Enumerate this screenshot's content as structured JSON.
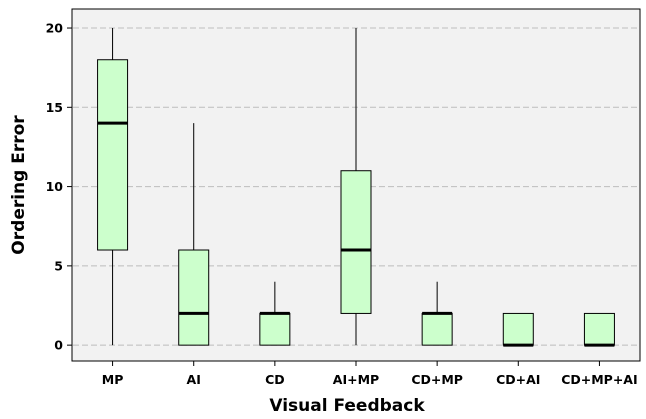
{
  "chart_data": {
    "type": "box",
    "title": "",
    "xlabel": "Visual Feedback",
    "ylabel": "Ordering Error",
    "categories": [
      "MP",
      "AI",
      "CD",
      "AI+MP",
      "CD+MP",
      "CD+AI",
      "CD+MP+AI"
    ],
    "ylim": [
      -1,
      21.2
    ],
    "yticks": [
      0,
      5,
      10,
      15,
      20
    ],
    "grid": "horizontal dashed",
    "boxes": [
      {
        "min": 0,
        "q1": 6,
        "median": 14,
        "q3": 18,
        "max": 20
      },
      {
        "min": 0,
        "q1": 0,
        "median": 2,
        "q3": 6,
        "max": 14
      },
      {
        "min": 0,
        "q1": 0,
        "median": 2,
        "q3": 2,
        "max": 4
      },
      {
        "min": 0,
        "q1": 2,
        "median": 6,
        "q3": 11,
        "max": 20
      },
      {
        "min": 0,
        "q1": 0,
        "median": 2,
        "q3": 2,
        "max": 4
      },
      {
        "min": 0,
        "q1": 0,
        "median": 0,
        "q3": 2,
        "max": 2
      },
      {
        "min": 0,
        "q1": 0,
        "median": 0,
        "q3": 2,
        "max": 2
      }
    ],
    "colors": {
      "box_fill": "#ccffcc",
      "plot_bg": "#f2f2f2",
      "grid": "#bdbdbd",
      "line": "#000000"
    }
  }
}
